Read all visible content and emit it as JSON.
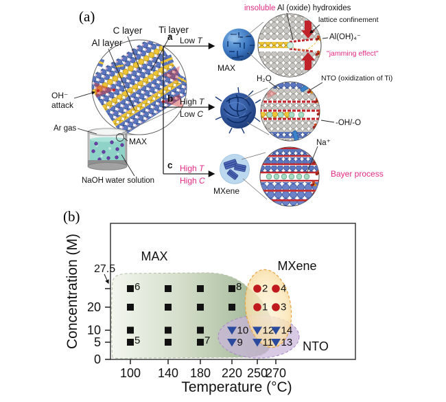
{
  "colors": {
    "pink_accent": "#e42a84",
    "red_tick": "#cc1414",
    "max_marker": "#111111",
    "mxene_marker": "#bf1a1e",
    "nto_marker": "#2a4a9e",
    "max_region_fill": "#9fb592",
    "mxene_region_fill": "#f3c178",
    "nto_region_fill": "#c9b4da"
  },
  "panel_a": {
    "tag": "(a)",
    "labels": {
      "c_layer": "C layer",
      "ti_layer": "Ti layer",
      "al_layer": "Al layer",
      "oh_line1": "OH⁻",
      "oh_line2": "attack",
      "ar_gas": "Ar gas",
      "max_in_solution": "MAX",
      "naoh": "NaOH water solution"
    },
    "branch_a": {
      "key": "a",
      "l1_prefix": "Low ",
      "l1_var": "T"
    },
    "branch_b": {
      "key": "b",
      "l1_prefix": "High ",
      "l1_var": "T",
      "l2_prefix": "Low ",
      "l2_var": "C"
    },
    "branch_c": {
      "key": "c",
      "l1_prefix": "High ",
      "l1_var": "T",
      "l2_prefix": "High ",
      "l2_var": "C"
    },
    "row_a": {
      "product": "MAX",
      "insoluble": "insoluble",
      "insoluble_rest": " Al (oxide) hydroxides",
      "lattice": "lattice confinement",
      "aloh": "Al(OH)₄⁻",
      "jamming": "\"jamming effect\""
    },
    "row_b": {
      "h2o": "H₂O",
      "nto": "NTO (oxidization of Ti)",
      "oh_o": "-OH/-O"
    },
    "row_c": {
      "product": "MXene",
      "na": "Na⁺",
      "bayer": "Bayer process"
    }
  },
  "panel_b": {
    "tag": "(b)",
    "chart_data": {
      "type": "scatter",
      "title": "",
      "xlabel": "Temperature (°C)",
      "ylabel": "Concentration (M)",
      "xlim": [
        82,
        360
      ],
      "ylim": [
        0,
        34
      ],
      "grid": false,
      "x_ticks": [
        {
          "value": 100,
          "label": "100",
          "color": "#111111"
        },
        {
          "value": 140,
          "label": "140",
          "color": "#111111"
        },
        {
          "value": 180,
          "label": "180",
          "color": "#111111"
        },
        {
          "value": 220,
          "label": "220",
          "color": "#111111"
        },
        {
          "value": 250,
          "label": "250",
          "color": "#111111"
        },
        {
          "value": 270,
          "label": "270",
          "color": "#cc1414"
        }
      ],
      "y_ticks": [
        {
          "value": 0,
          "label": "0"
        },
        {
          "value": 5,
          "label": "5"
        },
        {
          "value": 10,
          "label": "10"
        },
        {
          "value": 20,
          "label": "20"
        }
      ],
      "annotation": {
        "value": 27.5,
        "label": "27.5"
      },
      "regions": [
        {
          "label": "MAX",
          "fill": "#9fb592"
        },
        {
          "label": "MXene",
          "fill": "#f3c178"
        },
        {
          "label": "NTO",
          "fill": "#c9b4da"
        }
      ],
      "series": [
        {
          "name": "MAX",
          "marker": "square",
          "color": "#111111",
          "points": [
            {
              "x": 100,
              "y": 27.5,
              "label": "6"
            },
            {
              "x": 140,
              "y": 27.5
            },
            {
              "x": 180,
              "y": 27.5
            },
            {
              "x": 220,
              "y": 27.5,
              "label": "8"
            },
            {
              "x": 100,
              "y": 20
            },
            {
              "x": 140,
              "y": 20
            },
            {
              "x": 180,
              "y": 20
            },
            {
              "x": 220,
              "y": 20
            },
            {
              "x": 100,
              "y": 10
            },
            {
              "x": 140,
              "y": 10
            },
            {
              "x": 180,
              "y": 10
            },
            {
              "x": 100,
              "y": 5,
              "label": "5"
            },
            {
              "x": 140,
              "y": 5
            },
            {
              "x": 180,
              "y": 5,
              "label": "7"
            }
          ]
        },
        {
          "name": "MXene",
          "marker": "circle",
          "color": "#bf1a1e",
          "points": [
            {
              "x": 250,
              "y": 27.5,
              "label": "2"
            },
            {
              "x": 270,
              "y": 27.5,
              "label": "4"
            },
            {
              "x": 250,
              "y": 20,
              "label": "1"
            },
            {
              "x": 270,
              "y": 20,
              "label": "3"
            }
          ]
        },
        {
          "name": "NTO",
          "marker": "triangle-down",
          "color": "#2a4a9e",
          "points": [
            {
              "x": 220,
              "y": 10,
              "label": "10"
            },
            {
              "x": 250,
              "y": 10,
              "label": "12"
            },
            {
              "x": 270,
              "y": 10,
              "label": "14"
            },
            {
              "x": 220,
              "y": 5,
              "label": "9"
            },
            {
              "x": 250,
              "y": 5,
              "label": "11"
            },
            {
              "x": 270,
              "y": 5,
              "label": "13"
            }
          ]
        }
      ]
    }
  }
}
